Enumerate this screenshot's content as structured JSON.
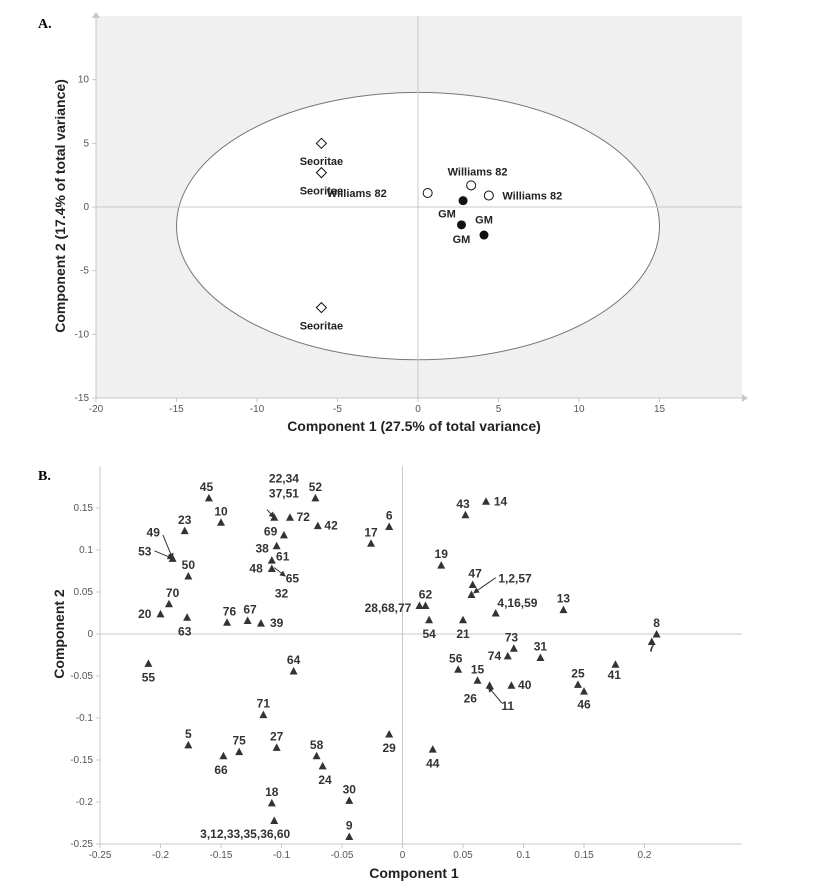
{
  "colors": {
    "plot_bg": "#f0f0f0",
    "marker": "#111111",
    "triangle": "#333333",
    "axis": "#c8c8c8"
  },
  "chart_data": [
    {
      "panel": "A.",
      "type": "scatter",
      "xlabel": "Component 1 (27.5% of total variance)",
      "ylabel": "Component 2 (17.4% of total variance)",
      "xlim": [
        -20,
        20
      ],
      "ylim": [
        -15,
        15
      ],
      "xticks": [
        -20,
        -15,
        -10,
        -5,
        0,
        5,
        10,
        15
      ],
      "yticks": [
        -15,
        -10,
        -5,
        0,
        5,
        10
      ],
      "ellipse": {
        "cx": 0,
        "cy": -1.5,
        "rx": 15,
        "ry": 10.5
      },
      "grid": false,
      "points": [
        {
          "label": "Seoritae",
          "x": -6,
          "y": 5,
          "shape": "diamond",
          "lx": -6,
          "ly": 3.6
        },
        {
          "label": "Seoritae",
          "x": -6,
          "y": 2.7,
          "shape": "diamond",
          "lx": -6,
          "ly": 1.3
        },
        {
          "label": "Seoritae",
          "x": -6,
          "y": -7.9,
          "shape": "diamond",
          "lx": -6,
          "ly": -9.3
        },
        {
          "label": "Williams 82",
          "x": 0.6,
          "y": 1.1,
          "shape": "open-circle",
          "lx": -3.8,
          "ly": 1.1
        },
        {
          "label": "Williams 82",
          "x": 3.3,
          "y": 1.7,
          "shape": "open-circle",
          "lx": 3.7,
          "ly": 2.8
        },
        {
          "label": "Williams 82",
          "x": 4.4,
          "y": 0.9,
          "shape": "open-circle",
          "lx": 7.1,
          "ly": 0.9
        },
        {
          "label": "GM",
          "x": 2.8,
          "y": 0.5,
          "shape": "filled-circle",
          "lx": 1.8,
          "ly": -0.5
        },
        {
          "label": "GM",
          "x": 2.7,
          "y": -1.4,
          "shape": "filled-circle",
          "lx": 2.7,
          "ly": -2.5
        },
        {
          "label": "GM",
          "x": 4.1,
          "y": -2.2,
          "shape": "filled-circle",
          "lx": 4.1,
          "ly": -1.0
        }
      ]
    },
    {
      "panel": "B.",
      "type": "scatter",
      "xlabel": "Component 1",
      "ylabel": "Component 2",
      "xlim": [
        -0.25,
        0.25
      ],
      "ylim": [
        -0.25,
        0.2
      ],
      "xticks": [
        -0.25,
        -0.2,
        -0.15,
        -0.1,
        -0.05,
        0,
        0.05,
        0.1,
        0.15,
        0.2
      ],
      "xtick_labels": [
        "-0.25",
        "-0.2",
        "-0.15",
        "-0.1",
        "-0.05",
        "0",
        "0.05",
        "0.1",
        "0.15",
        "0.2"
      ],
      "yticks": [
        -0.25,
        -0.2,
        -0.15,
        -0.1,
        -0.05,
        0,
        0.05,
        0.1,
        0.15
      ],
      "ytick_labels": [
        "-0.25",
        "-0.2",
        "-0.15",
        "-0.1",
        "-0.05",
        "0",
        "0.05",
        "0.1",
        "0.15"
      ],
      "grid": false,
      "points": [
        {
          "label": "45",
          "x": -0.16,
          "y": 0.162,
          "lx": -0.162,
          "ly": 0.175
        },
        {
          "label": "10",
          "x": -0.15,
          "y": 0.133,
          "lx": -0.15,
          "ly": 0.146
        },
        {
          "label": "23",
          "x": -0.18,
          "y": 0.123,
          "lx": -0.18,
          "ly": 0.136
        },
        {
          "label": "22,34",
          "x": -0.106,
          "y": 0.139,
          "lx": -0.098,
          "ly": 0.185
        },
        {
          "label": "37,51",
          "x": -0.106,
          "y": 0.139,
          "lx": -0.098,
          "ly": 0.167
        },
        {
          "label": "72",
          "x": -0.093,
          "y": 0.139,
          "lx": -0.082,
          "ly": 0.139
        },
        {
          "label": "52",
          "x": -0.072,
          "y": 0.162,
          "lx": -0.072,
          "ly": 0.175
        },
        {
          "label": "42",
          "x": -0.07,
          "y": 0.129,
          "lx": -0.059,
          "ly": 0.129
        },
        {
          "label": "69",
          "x": -0.098,
          "y": 0.118,
          "lx": -0.109,
          "ly": 0.122
        },
        {
          "label": "38",
          "x": -0.104,
          "y": 0.105,
          "lx": -0.116,
          "ly": 0.102
        },
        {
          "label": "49",
          "x": -0.19,
          "y": 0.09,
          "lx": -0.206,
          "ly": 0.121
        },
        {
          "label": "53",
          "x": -0.19,
          "y": 0.09,
          "lx": -0.213,
          "ly": 0.098
        },
        {
          "label": "50",
          "x": -0.177,
          "y": 0.069,
          "lx": -0.177,
          "ly": 0.082
        },
        {
          "label": "61",
          "x": -0.108,
          "y": 0.088,
          "lx": -0.099,
          "ly": 0.092
        },
        {
          "label": "48",
          "x": -0.108,
          "y": 0.078,
          "lx": -0.121,
          "ly": 0.078
        },
        {
          "label": "65",
          "x": -0.108,
          "y": 0.078,
          "lx": -0.091,
          "ly": 0.066
        },
        {
          "label": "32",
          "x": -0.108,
          "y": 0.078,
          "lx": -0.1,
          "ly": 0.048
        },
        {
          "label": "70",
          "x": -0.193,
          "y": 0.036,
          "lx": -0.19,
          "ly": 0.049
        },
        {
          "label": "20",
          "x": -0.2,
          "y": 0.024,
          "lx": -0.213,
          "ly": 0.024
        },
        {
          "label": "63",
          "x": -0.178,
          "y": 0.02,
          "lx": -0.18,
          "ly": 0.003
        },
        {
          "label": "76",
          "x": -0.145,
          "y": 0.014,
          "lx": -0.143,
          "ly": 0.027
        },
        {
          "label": "67",
          "x": -0.128,
          "y": 0.016,
          "lx": -0.126,
          "ly": 0.029
        },
        {
          "label": "39",
          "x": -0.117,
          "y": 0.013,
          "lx": -0.104,
          "ly": 0.013
        },
        {
          "label": "17",
          "x": -0.026,
          "y": 0.108,
          "lx": -0.026,
          "ly": 0.121
        },
        {
          "label": "6",
          "x": -0.011,
          "y": 0.128,
          "lx": -0.011,
          "ly": 0.141
        },
        {
          "label": "43",
          "x": 0.052,
          "y": 0.142,
          "lx": 0.05,
          "ly": 0.155
        },
        {
          "label": "14",
          "x": 0.069,
          "y": 0.158,
          "lx": 0.081,
          "ly": 0.158
        },
        {
          "label": "19",
          "x": 0.032,
          "y": 0.082,
          "lx": 0.032,
          "ly": 0.095
        },
        {
          "label": "47",
          "x": 0.058,
          "y": 0.059,
          "lx": 0.06,
          "ly": 0.072
        },
        {
          "label": "1,2,57",
          "x": 0.057,
          "y": 0.047,
          "lx": 0.093,
          "ly": 0.066
        },
        {
          "label": "4,16,59",
          "x": 0.077,
          "y": 0.025,
          "lx": 0.095,
          "ly": 0.037
        },
        {
          "label": "13",
          "x": 0.133,
          "y": 0.029,
          "lx": 0.133,
          "ly": 0.042
        },
        {
          "label": "62",
          "x": 0.019,
          "y": 0.034,
          "lx": 0.019,
          "ly": 0.047
        },
        {
          "label": "28,68,77",
          "x": 0.014,
          "y": 0.034,
          "lx": -0.012,
          "ly": 0.031
        },
        {
          "label": "54",
          "x": 0.022,
          "y": 0.017,
          "lx": 0.022,
          "ly": 0.0
        },
        {
          "label": "21",
          "x": 0.05,
          "y": 0.017,
          "lx": 0.05,
          "ly": 0.0
        },
        {
          "label": "8",
          "x": 0.21,
          "y": 0.0,
          "lx": 0.21,
          "ly": 0.013
        },
        {
          "label": "7",
          "x": 0.206,
          "y": -0.009,
          "lx": 0.206,
          "ly": -0.016
        },
        {
          "label": "73",
          "x": 0.092,
          "y": -0.017,
          "lx": 0.09,
          "ly": -0.004
        },
        {
          "label": "31",
          "x": 0.114,
          "y": -0.028,
          "lx": 0.114,
          "ly": -0.015
        },
        {
          "label": "74",
          "x": 0.087,
          "y": -0.026,
          "lx": 0.076,
          "ly": -0.026
        },
        {
          "label": "56",
          "x": 0.046,
          "y": -0.042,
          "lx": 0.044,
          "ly": -0.029
        },
        {
          "label": "15",
          "x": 0.062,
          "y": -0.055,
          "lx": 0.062,
          "ly": -0.042
        },
        {
          "label": "40",
          "x": 0.09,
          "y": -0.061,
          "lx": 0.101,
          "ly": -0.061
        },
        {
          "label": "26",
          "x": 0.072,
          "y": -0.061,
          "lx": 0.056,
          "ly": -0.077
        },
        {
          "label": "11",
          "x": 0.072,
          "y": -0.061,
          "lx": 0.087,
          "ly": -0.086
        },
        {
          "label": "41",
          "x": 0.176,
          "y": -0.036,
          "lx": 0.175,
          "ly": -0.049
        },
        {
          "label": "25",
          "x": 0.145,
          "y": -0.06,
          "lx": 0.145,
          "ly": -0.047
        },
        {
          "label": "46",
          "x": 0.15,
          "y": -0.068,
          "lx": 0.15,
          "ly": -0.084
        },
        {
          "label": "55",
          "x": -0.21,
          "y": -0.035,
          "lx": -0.21,
          "ly": -0.052
        },
        {
          "label": "64",
          "x": -0.09,
          "y": -0.044,
          "lx": -0.09,
          "ly": -0.031
        },
        {
          "label": "71",
          "x": -0.115,
          "y": -0.096,
          "lx": -0.115,
          "ly": -0.083
        },
        {
          "label": "5",
          "x": -0.177,
          "y": -0.132,
          "lx": -0.177,
          "ly": -0.119
        },
        {
          "label": "75",
          "x": -0.135,
          "y": -0.14,
          "lx": -0.135,
          "ly": -0.127
        },
        {
          "label": "66",
          "x": -0.148,
          "y": -0.145,
          "lx": -0.15,
          "ly": -0.162
        },
        {
          "label": "27",
          "x": -0.104,
          "y": -0.135,
          "lx": -0.104,
          "ly": -0.122
        },
        {
          "label": "58",
          "x": -0.071,
          "y": -0.145,
          "lx": -0.071,
          "ly": -0.132
        },
        {
          "label": "24",
          "x": -0.066,
          "y": -0.157,
          "lx": -0.064,
          "ly": -0.174
        },
        {
          "label": "29",
          "x": -0.011,
          "y": -0.119,
          "lx": -0.011,
          "ly": -0.136
        },
        {
          "label": "44",
          "x": 0.025,
          "y": -0.137,
          "lx": 0.025,
          "ly": -0.154
        },
        {
          "label": "18",
          "x": -0.108,
          "y": -0.201,
          "lx": -0.108,
          "ly": -0.188
        },
        {
          "label": "30",
          "x": -0.044,
          "y": -0.198,
          "lx": -0.044,
          "ly": -0.185
        },
        {
          "label": "3,12,33,35,36,60",
          "x": -0.106,
          "y": -0.222,
          "lx": -0.13,
          "ly": -0.238
        },
        {
          "label": "9",
          "x": -0.044,
          "y": -0.241,
          "lx": -0.044,
          "ly": -0.228
        }
      ],
      "leaders": [
        {
          "from": [
            -0.198,
            0.118
          ],
          "to": [
            -0.19,
            0.09
          ]
        },
        {
          "from": [
            -0.205,
            0.099
          ],
          "to": [
            -0.19,
            0.09
          ]
        },
        {
          "from": [
            -0.112,
            0.148
          ],
          "to": [
            -0.106,
            0.139
          ]
        },
        {
          "from": [
            -0.106,
            0.079
          ],
          "to": [
            -0.097,
            0.069
          ]
        },
        {
          "from": [
            0.077,
            0.067
          ],
          "to": [
            0.059,
            0.049
          ]
        },
        {
          "from": [
            0.082,
            -0.082
          ],
          "to": [
            0.071,
            -0.063
          ]
        }
      ]
    }
  ]
}
